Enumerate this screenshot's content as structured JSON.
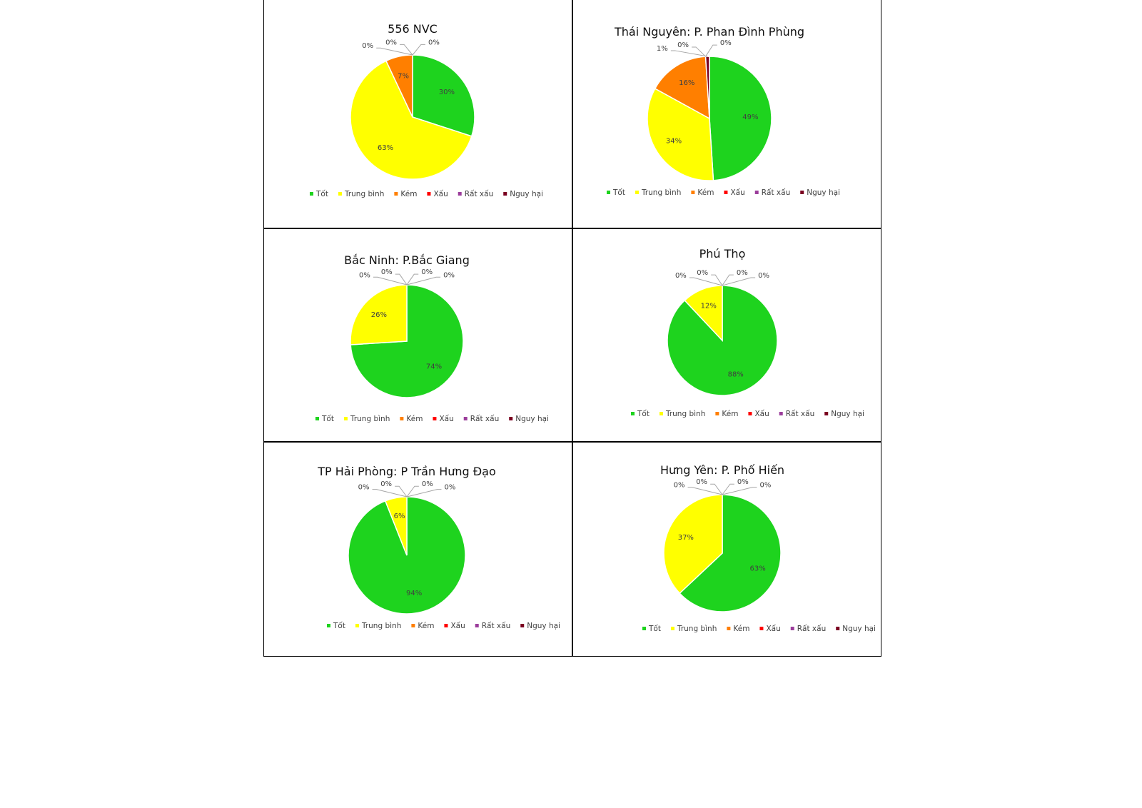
{
  "chart_data": [
    {
      "type": "pie",
      "title": "556 NVC",
      "categories": [
        "Tốt",
        "Trung bình",
        "Kém",
        "Xấu",
        "Rất xấu",
        "Nguy hại"
      ],
      "values": [
        30,
        63,
        7,
        0,
        0,
        0
      ],
      "data_labels": [
        "30%",
        "63%",
        "7%",
        "0%",
        "0%",
        "0%"
      ],
      "legend": "bottom"
    },
    {
      "type": "pie",
      "title": "Thái Nguyên: P. Phan Đình Phùng",
      "categories": [
        "Tốt",
        "Trung bình",
        "Kém",
        "Xấu",
        "Rất xấu",
        "Nguy hại"
      ],
      "values": [
        49,
        34,
        16,
        0,
        0,
        1
      ],
      "data_labels": [
        "49%",
        "34%",
        "16%",
        "0%",
        "0%",
        "1%"
      ],
      "legend": "bottom"
    },
    {
      "type": "pie",
      "title": "Bắc Ninh: P.Bắc Giang",
      "categories": [
        "Tốt",
        "Trung bình",
        "Kém",
        "Xấu",
        "Rất xấu",
        "Nguy hại"
      ],
      "values": [
        74,
        26,
        0,
        0,
        0,
        0
      ],
      "data_labels": [
        "74%",
        "26%",
        "0%",
        "0%",
        "0%",
        "0%"
      ],
      "legend": "bottom"
    },
    {
      "type": "pie",
      "title": "Phú Thọ",
      "categories": [
        "Tốt",
        "Trung bình",
        "Kém",
        "Xấu",
        "Rất xấu",
        "Nguy hại"
      ],
      "values": [
        88,
        12,
        0,
        0,
        0,
        0
      ],
      "data_labels": [
        "88%",
        "12%",
        "0%",
        "0%",
        "0%",
        "0%"
      ],
      "legend": "bottom"
    },
    {
      "type": "pie",
      "title": "TP Hải Phòng: P Trần Hưng Đạo",
      "categories": [
        "Tốt",
        "Trung bình",
        "Kém",
        "Xấu",
        "Rất xấu",
        "Nguy hại"
      ],
      "values": [
        94,
        6,
        0,
        0,
        0,
        0
      ],
      "data_labels": [
        "94%",
        "6%",
        "0%",
        "0%",
        "0%",
        "0%"
      ],
      "legend": "bottom"
    },
    {
      "type": "pie",
      "title": "Hưng Yên: P. Phố Hiến",
      "categories": [
        "Tốt",
        "Trung bình",
        "Kém",
        "Xấu",
        "Rất xấu",
        "Nguy hại"
      ],
      "values": [
        63,
        37,
        0,
        0,
        0,
        0
      ],
      "data_labels": [
        "63%",
        "37%",
        "0%",
        "0%",
        "0%",
        "0%"
      ],
      "legend": "bottom"
    }
  ],
  "colors": [
    "#1ed31e",
    "#ffff00",
    "#ff7f00",
    "#ff0000",
    "#9b3d9b",
    "#7a0020"
  ]
}
